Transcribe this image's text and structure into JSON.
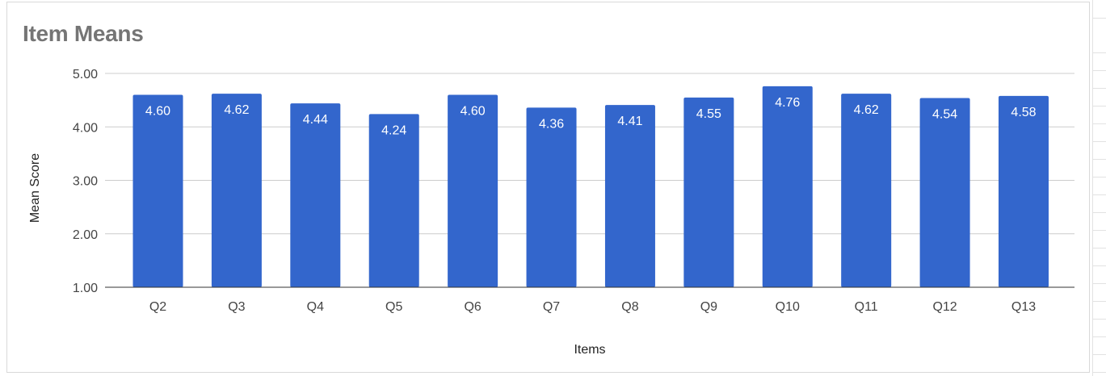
{
  "colors": {
    "bar": "#3366cc",
    "grid": "#cccccc",
    "baseline": "#333333"
  },
  "chart_data": {
    "type": "bar",
    "title": "Item Means",
    "xlabel": "Items",
    "ylabel": "Mean Score",
    "categories": [
      "Q2",
      "Q3",
      "Q4",
      "Q5",
      "Q6",
      "Q7",
      "Q8",
      "Q9",
      "Q10",
      "Q11",
      "Q12",
      "Q13"
    ],
    "values": [
      4.6,
      4.62,
      4.44,
      4.24,
      4.6,
      4.36,
      4.41,
      4.55,
      4.76,
      4.62,
      4.54,
      4.58
    ],
    "data_labels": [
      "4.60",
      "4.62",
      "4.44",
      "4.24",
      "4.60",
      "4.36",
      "4.41",
      "4.55",
      "4.76",
      "4.62",
      "4.54",
      "4.58"
    ],
    "yticks": [
      "1.00",
      "2.00",
      "3.00",
      "4.00",
      "5.00"
    ],
    "ylim": [
      1,
      5
    ],
    "grid": true,
    "legend": "none"
  }
}
